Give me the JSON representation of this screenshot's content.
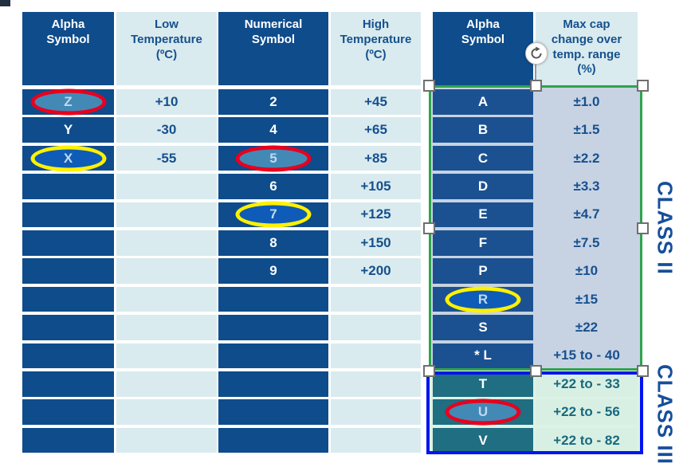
{
  "table": {
    "columns": [
      {
        "id": "alpha_symbol_left",
        "header": "Alpha\nSymbol",
        "style": "dark"
      },
      {
        "id": "low_temperature",
        "header": "Low\nTemperature\n(ºC)",
        "style": "light"
      },
      {
        "id": "numerical_symbol",
        "header": "Numerical\nSymbol",
        "style": "dark"
      },
      {
        "id": "high_temperature",
        "header": "High\nTemperature\n(ºC)",
        "style": "light"
      },
      {
        "id": "alpha_symbol_right",
        "header": "Alpha\nSymbol",
        "style": "dark"
      },
      {
        "id": "max_cap_change",
        "header": "Max cap\nchange over\ntemp. range\n(%)",
        "style": "light"
      }
    ],
    "rows": [
      [
        "Z",
        "+10",
        "2",
        "+45",
        "A",
        "±1.0"
      ],
      [
        "Y",
        "-30",
        "4",
        "+65",
        "B",
        "±1.5"
      ],
      [
        "X",
        "-55",
        "5",
        "+85",
        "C",
        "±2.2"
      ],
      [
        "",
        "",
        "6",
        "+105",
        "D",
        "±3.3"
      ],
      [
        "",
        "",
        "7",
        "+125",
        "E",
        "±4.7"
      ],
      [
        "",
        "",
        "8",
        "+150",
        "F",
        "±7.5"
      ],
      [
        "",
        "",
        "9",
        "+200",
        "P",
        "±10"
      ],
      [
        "",
        "",
        "",
        "",
        "R",
        "±15"
      ],
      [
        "",
        "",
        "",
        "",
        "S",
        "±22"
      ],
      [
        "",
        "",
        "",
        "",
        "* L",
        "+15 to - 40"
      ],
      [
        "",
        "",
        "",
        "",
        "T",
        "+22 to - 33"
      ],
      [
        "",
        "",
        "",
        "",
        "U",
        "+22 to - 56"
      ],
      [
        "",
        "",
        "",
        "",
        "V",
        "+22 to - 82"
      ]
    ],
    "class2_row_range": [
      0,
      9
    ],
    "class3_row_range": [
      10,
      12
    ]
  },
  "class_labels": [
    {
      "label": "CLASS II"
    },
    {
      "label": "CLASS III"
    }
  ],
  "annotations": {
    "ellipses": [
      {
        "row": 0,
        "col": 0,
        "outline": "red",
        "circled_value": "Z"
      },
      {
        "row": 2,
        "col": 0,
        "outline": "yellow",
        "circled_value": "X"
      },
      {
        "row": 2,
        "col": 2,
        "outline": "red",
        "circled_value": "5"
      },
      {
        "row": 4,
        "col": 2,
        "outline": "yellow",
        "circled_value": "7"
      },
      {
        "row": 7,
        "col": 4,
        "outline": "yellow",
        "circled_value": "R"
      },
      {
        "row": 11,
        "col": 4,
        "outline": "red",
        "circled_value": "U"
      }
    ]
  },
  "selection": {
    "rotate_icon": "rotate-clockwise-icon",
    "handles": [
      "nw",
      "n",
      "ne",
      "w",
      "e",
      "sw",
      "s",
      "se"
    ]
  },
  "colors": {
    "dark_cell": "#0E4C8C",
    "light_cell": "#D9EBEE",
    "selected_dark_cell": "#1B5191",
    "selected_light_cell": "#C7D3E3",
    "teal_cell": "#1F6E81",
    "teal_light_cell": "#D8F0E3",
    "navy_text": "#17508F",
    "teal_text": "#19697E",
    "white_text": "#FFFFFF",
    "ellipse_letter_text": "#BFD9F0",
    "selection_green": "#2EA44D",
    "class3_blue": "#0016EE",
    "annotation_red": "#E8001E",
    "annotation_yellow": "#FFF100",
    "ellipse_fill_red_outlined": "#4389B6",
    "ellipse_fill_yellow_outlined": "#0E5CB7",
    "class2_gap_fill": "#C7D3E2",
    "class3_gap_fill": "#DDF2E6",
    "class_label_text": "#154E9B"
  }
}
